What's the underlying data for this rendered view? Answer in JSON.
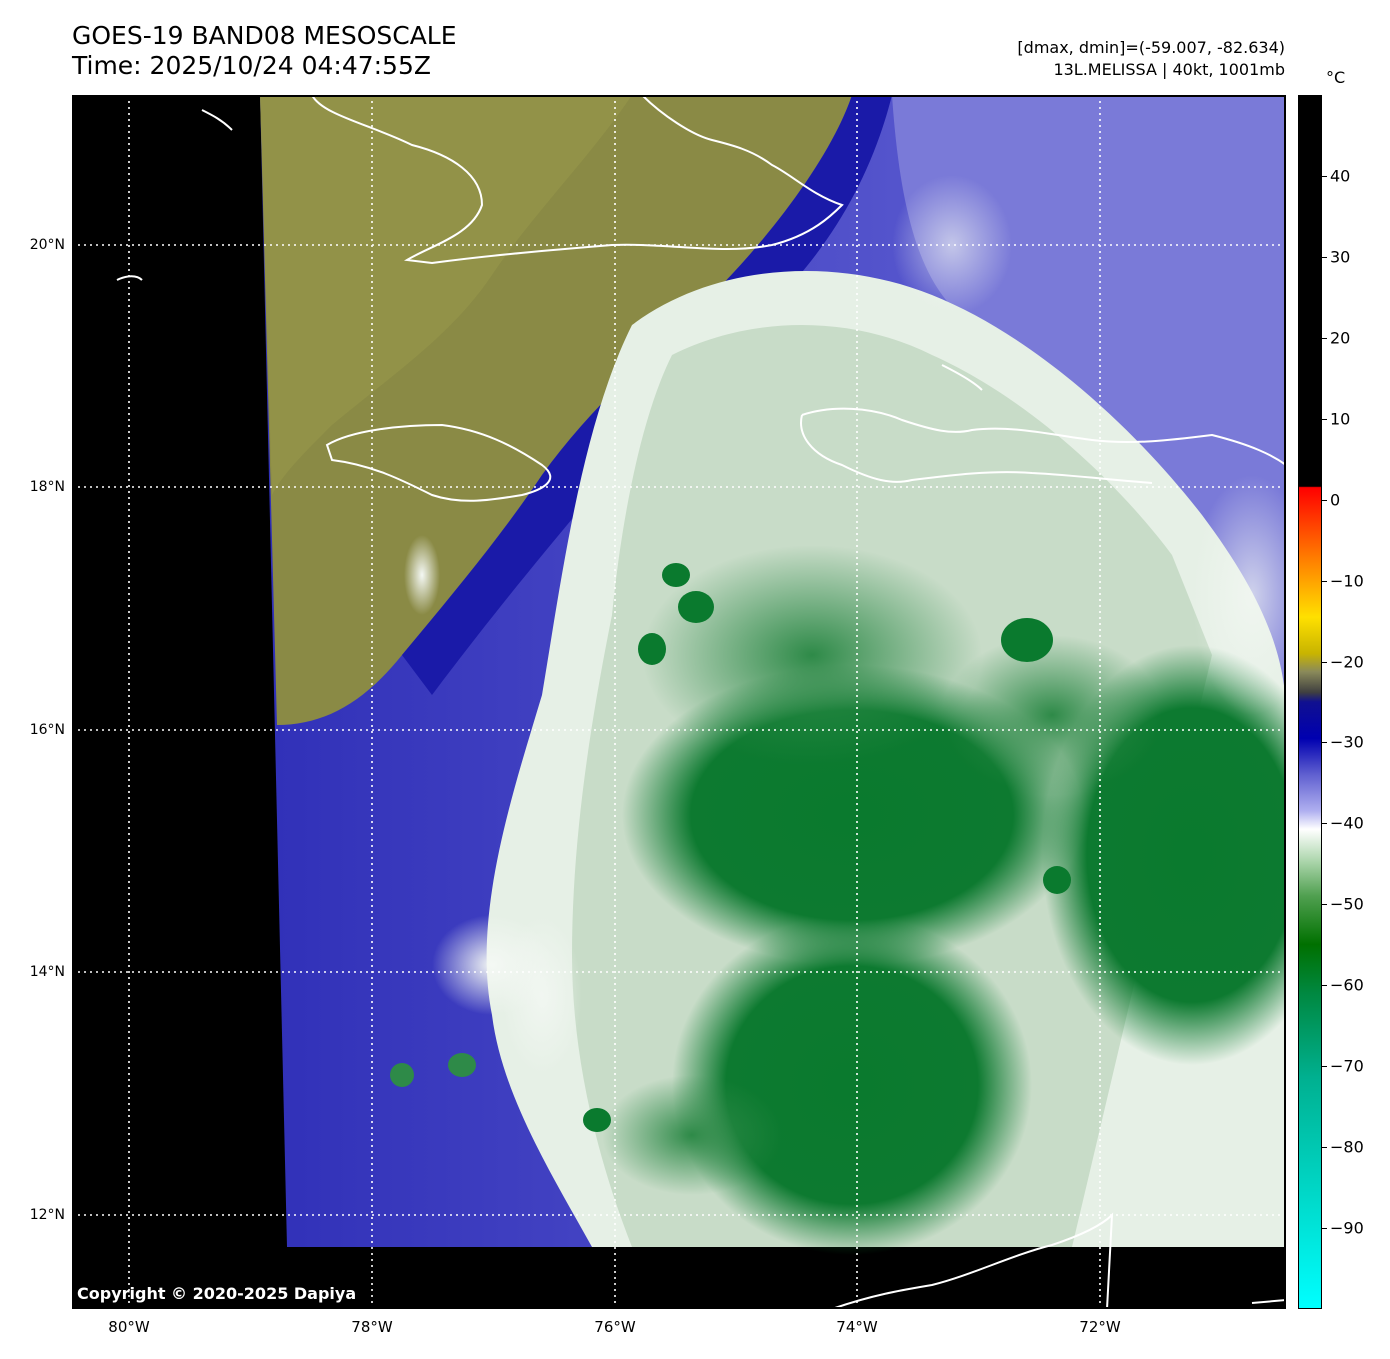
{
  "header": {
    "title_line1": "GOES-19 BAND08 MESOSCALE",
    "title_line2": "Time: 2025/10/24 04:47:55Z",
    "info_line1": "[dmax, dmin]=(-59.007, -82.634)",
    "info_line2": "13L.MELISSA | 40kt, 1001mb"
  },
  "colorbar": {
    "unit": "°C",
    "ticks": [
      "40",
      "30",
      "20",
      "10",
      "0",
      "−10",
      "−20",
      "−30",
      "−40",
      "−50",
      "−60",
      "−70",
      "−80",
      "−90"
    ],
    "tick_values": [
      40,
      30,
      20,
      10,
      0,
      -10,
      -20,
      -30,
      -40,
      -50,
      -60,
      -70,
      -80,
      -90
    ],
    "range": [
      -100,
      50
    ]
  },
  "axes": {
    "lon_labels": [
      "80°W",
      "78°W",
      "76°W",
      "74°W",
      "72°W"
    ],
    "lon_values": [
      -80,
      -78,
      -76,
      -74,
      -72
    ],
    "lat_labels": [
      "20°N",
      "18°N",
      "16°N",
      "14°N",
      "12°N"
    ],
    "lat_values": [
      20,
      18,
      16,
      14,
      12
    ],
    "lon_range": [
      -80.47,
      -70.47
    ],
    "lat_range": [
      11.25,
      21.25
    ]
  },
  "map": {
    "storm_name": "13L.MELISSA",
    "colors": {
      "warm": "#8a8a42",
      "cold_cloud": "#0a7a2a",
      "mid_cloud": "#e8f0e8",
      "blue": "#2020b0",
      "coast": "#ffffff",
      "nodata": "#000000"
    }
  },
  "footer": {
    "copyright": "Copyright © 2020-2025 Dapiya"
  }
}
